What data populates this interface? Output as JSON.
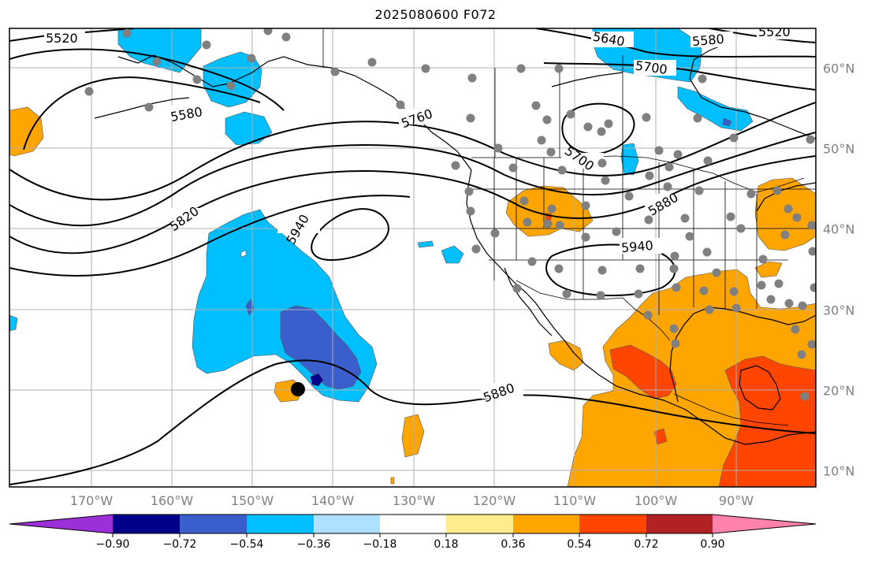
{
  "title": "2025080600 F072",
  "map": {
    "type": "contour-map",
    "longitude_labels": [
      "170°W",
      "160°W",
      "150°W",
      "140°W",
      "130°W",
      "120°W",
      "110°W",
      "100°W",
      "90°W"
    ],
    "latitude_labels": [
      "60°N",
      "50°N",
      "40°N",
      "30°N",
      "20°N",
      "10°N"
    ],
    "contour_labels": [
      "5520",
      "5580",
      "5640",
      "5580",
      "5520",
      "5700",
      "5580",
      "5760",
      "5700",
      "5820",
      "5880",
      "5940",
      "5940",
      "5880"
    ],
    "colors": {
      "purple": "#9b30d9",
      "navy": "#00008b",
      "royal": "#3a5fcd",
      "sky": "#00bfff",
      "light": "#aee0ff",
      "white": "#ffffff",
      "yellow": "#ffec8b",
      "orange": "#ffa500",
      "red_orange": "#ff4500",
      "firebrick": "#b22222",
      "pink": "#ff82ab"
    }
  },
  "colorbar": {
    "ticks": [
      "−0.90",
      "−0.72",
      "−0.54",
      "−0.36",
      "−0.18",
      "0.18",
      "0.36",
      "0.54",
      "0.72",
      "0.90"
    ],
    "bins": [
      "#9b30d9",
      "#00008b",
      "#3a5fcd",
      "#00bfff",
      "#aee0ff",
      "#ffffff",
      "#ffec8b",
      "#ffa500",
      "#ff4500",
      "#b22222",
      "#ff82ab"
    ]
  }
}
